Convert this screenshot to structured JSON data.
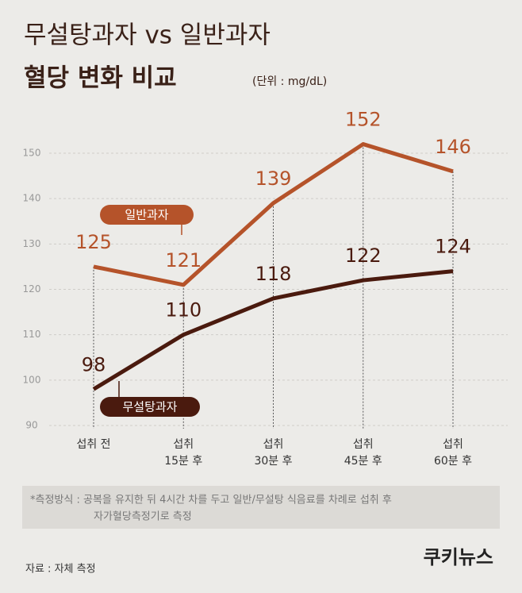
{
  "chart_data": {
    "type": "line",
    "title": "무설탕과자 vs 일반과자",
    "subtitle": "혈당 변화 비교",
    "unit": "(단위 : mg/dL)",
    "categories": [
      "섭취 전",
      "섭취\n15분 후",
      "섭취\n30분 후",
      "섭취\n45분 후",
      "섭취\n60분 후"
    ],
    "series": [
      {
        "name": "일반과자",
        "color": "#b5532a",
        "values": [
          125,
          121,
          139,
          152,
          146
        ]
      },
      {
        "name": "무설탕과자",
        "color": "#4a1a0e",
        "values": [
          98,
          110,
          118,
          122,
          124
        ]
      }
    ],
    "ylim": [
      90,
      150
    ],
    "yticks": [
      90,
      100,
      110,
      120,
      130,
      140,
      150
    ],
    "grid": true
  },
  "note": [
    "*측정방식 : 공복을 유지한 뒤 4시간 차를 두고 일반/무설탕 식음료를 차례로 섭취 후",
    "자가혈당측정기로 측정"
  ],
  "source": "자료 : 자체 측정",
  "logo": "쿠키뉴스"
}
